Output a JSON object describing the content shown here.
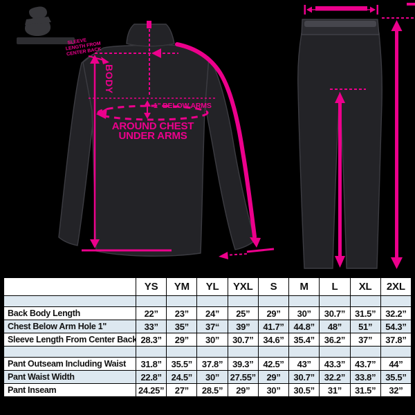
{
  "accent_color": "#EC008C",
  "table_stripe_color": "#dde8f0",
  "brand": {
    "logo": "brand-logo"
  },
  "diagram": {
    "jacket": {
      "sleeve_label_line1": "SLEEVE",
      "sleeve_label_line2": "LENGTH FROM",
      "sleeve_label_line3": "CENTER BACK",
      "body_label": "BODY",
      "below_arms_label": "1\" BELOW ARMS",
      "chest_label_line1": "AROUND CHEST",
      "chest_label_line2": "UNDER ARMS"
    }
  },
  "size_table": {
    "columns": [
      "YS",
      "YM",
      "YL",
      "YXL",
      "S",
      "M",
      "L",
      "XL",
      "2XL"
    ],
    "groups": [
      {
        "name": "jacket",
        "rows": [
          {
            "label": "Back Body Length",
            "values": [
              "22”",
              "23”",
              "24”",
              "25”",
              "29”",
              "30”",
              "30.7”",
              "31.5”",
              "32.2”"
            ]
          },
          {
            "label": "Chest Below Arm Hole 1\"",
            "values": [
              "33”",
              "35”",
              "37“",
              "39”",
              "41.7”",
              "44.8”",
              "48”",
              "51”",
              "54.3”"
            ]
          },
          {
            "label": "Sleeve Length From Center Back",
            "values": [
              "28.3”",
              "29”",
              "30”",
              "30.7”",
              "34.6”",
              "35.4”",
              "36.2”",
              "37”",
              "37.8”"
            ]
          }
        ]
      },
      {
        "name": "pants",
        "rows": [
          {
            "label": "Pant Outseam Including Waist",
            "values": [
              "31.8”",
              "35.5”",
              "37.8”",
              "39.3”",
              "42.5”",
              "43”",
              "43.3”",
              "43.7”",
              "44”"
            ]
          },
          {
            "label": "Pant Waist Width",
            "values": [
              "22.8”",
              "24.5”",
              "30”",
              "27.55”",
              "29”",
              "30.7”",
              "32.2”",
              "33.8”",
              "35.5”"
            ]
          },
          {
            "label": "Pant Inseam",
            "values": [
              "24.25”",
              "27”",
              "28.5”",
              "29”",
              "30”",
              "30.5”",
              "31”",
              "31.5”",
              "32”"
            ]
          }
        ]
      }
    ]
  }
}
